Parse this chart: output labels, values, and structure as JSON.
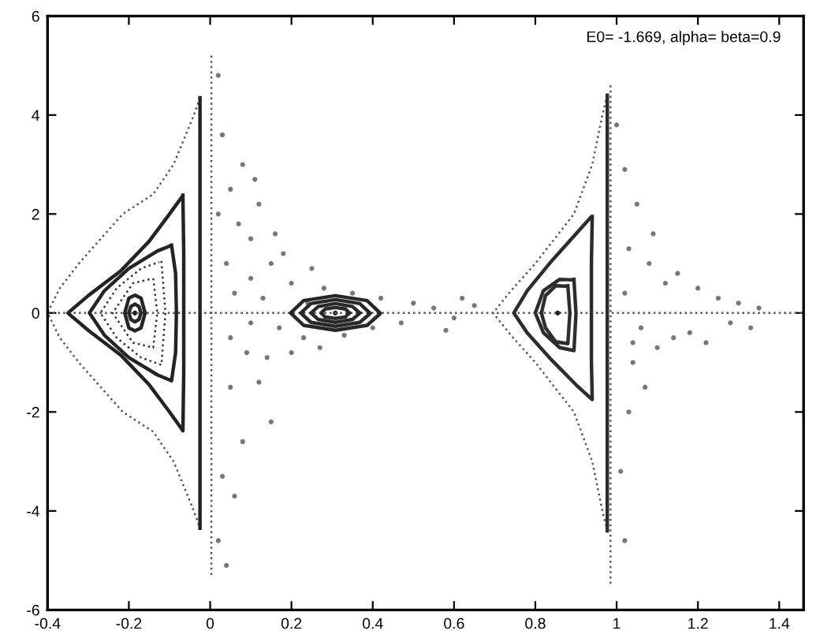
{
  "chart_data": {
    "type": "line",
    "annotations": [
      "E0= -1.669, alpha= beta=0.9"
    ],
    "xlim": [
      -0.4,
      1.46
    ],
    "ylim": [
      -6,
      6
    ],
    "xticks": [
      -0.4,
      -0.2,
      0,
      0.2,
      0.4,
      0.6,
      0.8,
      1,
      1.2,
      1.4
    ],
    "yticks": [
      -6,
      -4,
      -2,
      0,
      2,
      4,
      6
    ],
    "grid": false,
    "legend": false,
    "series": [
      {
        "line_style": "dotted",
        "color": "#555555",
        "x": [
          -0.4,
          1.46
        ],
        "values": [
          0,
          0
        ]
      },
      {
        "line_style": "dotted",
        "color": "#565656",
        "x": [
          0.003,
          0.003
        ],
        "values": [
          5.2,
          -5.3
        ]
      },
      {
        "line_style": "dotted",
        "color": "#575757",
        "x": [
          -0.025,
          -0.04,
          -0.09,
          -0.14,
          -0.215,
          -0.28,
          -0.323,
          -0.37,
          -0.4,
          -0.37,
          -0.323,
          -0.28,
          -0.215,
          -0.14,
          -0.09,
          -0.04,
          -0.025
        ],
        "values": [
          4.35,
          4.0,
          3.0,
          2.4,
          2.0,
          1.4,
          1.0,
          0.5,
          0,
          -0.5,
          -1.0,
          -1.4,
          -2.0,
          -2.4,
          -3.0,
          -4.0,
          -4.35
        ]
      },
      {
        "line_style": "solid",
        "color": "#222222",
        "x": [
          -0.025,
          -0.025
        ],
        "values": [
          4.35,
          -4.35
        ]
      },
      {
        "line_style": "solid",
        "color": "#232323",
        "x": [
          -0.067,
          -0.065,
          -0.065,
          -0.065,
          -0.067,
          -0.1,
          -0.15,
          -0.22,
          -0.3,
          -0.35,
          -0.3,
          -0.22,
          -0.15,
          -0.1,
          -0.07
        ],
        "values": [
          2.38,
          1.2,
          0,
          -1.2,
          -2.38,
          -2.0,
          -1.45,
          -0.85,
          -0.35,
          0,
          0.35,
          0.85,
          1.45,
          2.0,
          2.34
        ]
      },
      {
        "line_style": "solid",
        "color": "#242424",
        "x": [
          -0.095,
          -0.085,
          -0.083,
          -0.085,
          -0.095,
          -0.13,
          -0.2,
          -0.26,
          -0.297,
          -0.26,
          -0.2,
          -0.13,
          -0.1
        ],
        "values": [
          1.37,
          0.8,
          0,
          -0.8,
          -1.37,
          -1.25,
          -0.9,
          -0.45,
          0,
          0.45,
          0.9,
          1.25,
          1.35
        ]
      },
      {
        "line_style": "dotted",
        "color": "#333333",
        "x": [
          -0.12,
          -0.11,
          -0.12,
          -0.17,
          -0.23,
          -0.27,
          -0.23,
          -0.17,
          -0.125
        ],
        "values": [
          1.05,
          0,
          -1.05,
          -0.9,
          -0.5,
          0,
          0.5,
          0.9,
          1.03
        ]
      },
      {
        "line_style": "dotted",
        "color": "#343434",
        "x": [
          -0.14,
          -0.13,
          -0.14,
          -0.19,
          -0.24,
          -0.19,
          -0.145
        ],
        "values": [
          0.7,
          0,
          -0.7,
          -0.6,
          0,
          0.6,
          0.69
        ]
      },
      {
        "line_style": "solid",
        "color": "#252525",
        "x": [
          -0.16,
          -0.17,
          -0.185,
          -0.2,
          -0.21,
          -0.2,
          -0.185,
          -0.17,
          -0.161
        ],
        "values": [
          0,
          0.3,
          0.36,
          0.3,
          0,
          -0.3,
          -0.36,
          -0.3,
          -0.03
        ]
      },
      {
        "line_style": "solid",
        "color": "#262626",
        "x": [
          -0.17,
          -0.175,
          -0.185,
          -0.195,
          -0.2,
          -0.195,
          -0.185,
          -0.175,
          -0.171
        ],
        "values": [
          0,
          0.13,
          0.18,
          0.13,
          0,
          -0.13,
          -0.18,
          -0.13,
          -0.02
        ]
      },
      {
        "line_style": "solid",
        "color": "#272727",
        "x": [
          0.418,
          0.386,
          0.308,
          0.23,
          0.198,
          0.23,
          0.308,
          0.386,
          0.416
        ],
        "values": [
          0,
          0.25,
          0.35,
          0.25,
          0,
          -0.25,
          -0.35,
          -0.25,
          -0.03
        ]
      },
      {
        "line_style": "solid",
        "color": "#282828",
        "x": [
          0.393,
          0.368,
          0.308,
          0.248,
          0.223,
          0.248,
          0.308,
          0.368,
          0.391
        ],
        "values": [
          0,
          0.19,
          0.27,
          0.19,
          0,
          -0.19,
          -0.27,
          -0.19,
          -0.03
        ]
      },
      {
        "line_style": "solid",
        "color": "#292929",
        "x": [
          0.368,
          0.35,
          0.308,
          0.266,
          0.248,
          0.266,
          0.308,
          0.35,
          0.366
        ],
        "values": [
          0,
          0.13,
          0.19,
          0.13,
          0,
          -0.13,
          -0.19,
          -0.13,
          -0.02
        ]
      },
      {
        "line_style": "solid",
        "color": "#2a2a2a",
        "x": [
          0.343,
          0.333,
          0.308,
          0.283,
          0.273,
          0.283,
          0.308,
          0.333,
          0.341
        ],
        "values": [
          0,
          0.08,
          0.11,
          0.08,
          0,
          -0.08,
          -0.11,
          -0.08,
          -0.01
        ]
      },
      {
        "line_style": "dotted",
        "color": "#585858",
        "x": [
          0.977,
          0.965,
          0.94,
          0.895,
          0.8,
          0.74,
          0.696,
          0.74,
          0.8,
          0.895,
          0.94,
          0.965,
          0.977
        ],
        "values": [
          4.4,
          4.0,
          3.0,
          2.0,
          1.0,
          0.45,
          0,
          -0.45,
          -1.0,
          -2.0,
          -3.0,
          -4.0,
          -4.4
        ]
      },
      {
        "line_style": "solid",
        "color": "#2b2b2b",
        "x": [
          0.977,
          0.977
        ],
        "values": [
          4.4,
          -4.4
        ]
      },
      {
        "line_style": "dotted",
        "color": "#595959",
        "x": [
          0.985,
          0.985
        ],
        "values": [
          4.6,
          -5.5
        ]
      },
      {
        "line_style": "solid",
        "color": "#2c2c2c",
        "x": [
          0.94,
          0.938,
          0.938,
          0.938,
          0.94,
          0.9,
          0.84,
          0.78,
          0.747,
          0.78,
          0.84,
          0.9,
          0.935
        ],
        "values": [
          1.95,
          1.0,
          0,
          -1.0,
          -1.75,
          -1.45,
          -0.95,
          -0.4,
          0,
          0.45,
          1.05,
          1.6,
          1.92
        ]
      },
      {
        "line_style": "solid",
        "color": "#2d2d2d",
        "x": [
          0.895,
          0.9,
          0.895,
          0.86,
          0.82,
          0.8,
          0.82,
          0.86,
          0.89
        ],
        "values": [
          0.68,
          0,
          -0.76,
          -0.7,
          -0.4,
          0,
          0.45,
          0.68,
          0.67
        ]
      },
      {
        "line_style": "solid",
        "color": "#2e2e2e",
        "x": [
          0.88,
          0.885,
          0.88,
          0.85,
          0.825,
          0.815,
          0.825,
          0.85,
          0.876
        ],
        "values": [
          0.55,
          0,
          -0.62,
          -0.58,
          -0.3,
          0,
          0.35,
          0.55,
          0.54
        ]
      },
      {
        "type": "scatter",
        "color": "#222222",
        "x": [
          0.855,
          -0.185,
          0.308
        ],
        "values": [
          0,
          0,
          0
        ]
      },
      {
        "type": "scatter",
        "color": "#777777",
        "x": [
          0.02,
          0.03,
          0.05,
          0.08,
          0.07,
          0.1,
          0.12,
          0.15,
          0.18,
          0.2,
          0.25,
          0.28,
          0.35,
          0.42,
          0.5,
          0.04,
          0.06,
          0.1,
          0.13,
          0.17,
          0.09,
          0.05,
          0.12,
          0.15,
          0.08,
          0.03,
          0.06,
          0.02,
          0.04,
          0.2,
          0.23,
          0.27,
          0.33,
          0.4,
          0.47,
          0.1,
          0.02,
          0.11,
          0.16,
          0.14,
          0.24,
          0.55,
          0.6,
          0.65,
          0.05,
          1.0,
          1.02,
          1.05,
          1.03,
          1.08,
          1.12,
          1.15,
          1.2,
          1.25,
          1.3,
          1.35,
          1.02,
          1.06,
          1.1,
          1.14,
          1.18,
          1.22,
          1.28,
          1.33,
          1.04,
          1.07,
          1.03,
          1.01,
          1.02,
          1.04,
          1.09,
          0.62,
          0.58
        ],
        "values": [
          4.8,
          3.6,
          2.5,
          3.0,
          1.8,
          1.5,
          2.2,
          1.0,
          1.2,
          0.6,
          0.9,
          0.5,
          0.4,
          0.3,
          0.2,
          1.0,
          0.4,
          0.7,
          0.3,
          -0.3,
          -0.8,
          -1.5,
          -1.4,
          -2.2,
          -2.6,
          -3.3,
          -3.7,
          -4.6,
          -5.1,
          -0.8,
          -0.5,
          -0.7,
          -0.45,
          -0.3,
          -0.2,
          -0.2,
          2.0,
          2.7,
          1.6,
          -0.9,
          0.2,
          0.1,
          -0.1,
          0.15,
          -0.5,
          3.8,
          2.9,
          2.2,
          1.3,
          1.0,
          0.6,
          0.8,
          0.5,
          0.3,
          0.2,
          0.1,
          0.4,
          -0.3,
          -0.7,
          -0.5,
          -0.4,
          -0.6,
          -0.2,
          -0.3,
          -1.0,
          -1.5,
          -2.0,
          -3.2,
          -4.6,
          -0.6,
          1.6,
          0.3,
          -0.35
        ]
      }
    ]
  }
}
